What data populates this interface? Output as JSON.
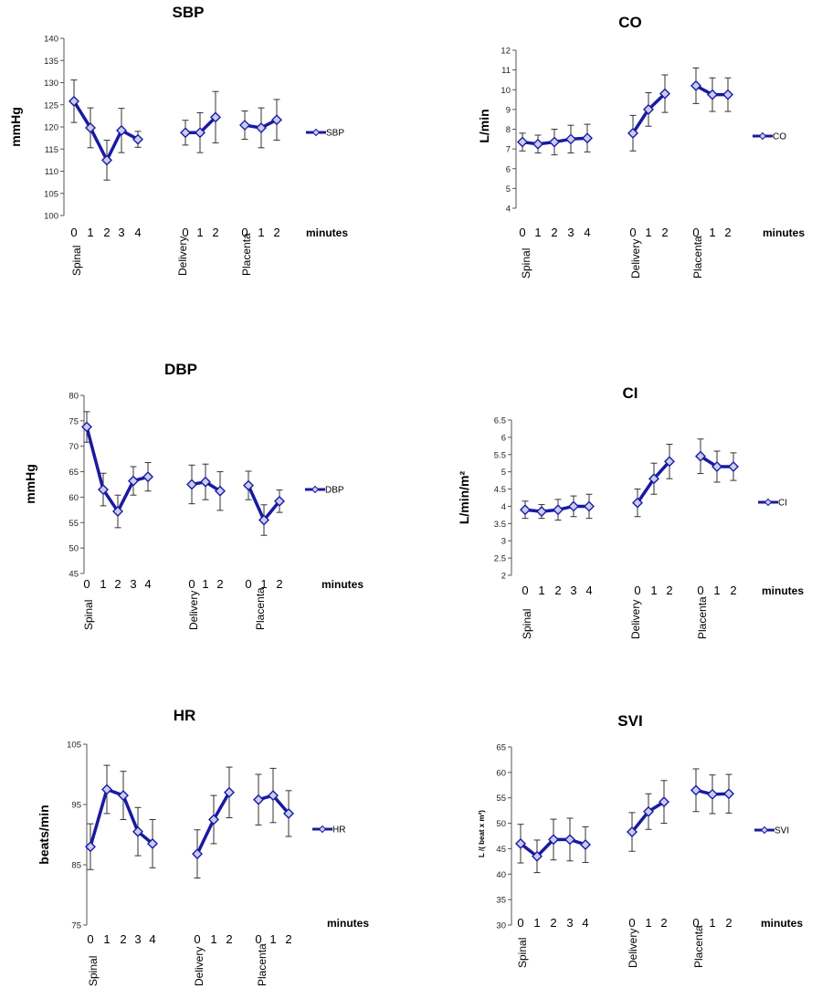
{
  "chart_data": [
    {
      "type": "line",
      "title": "SBP",
      "ylabel": "mmHg",
      "xlabel": "minutes",
      "ylim": [
        100,
        140
      ],
      "yticks": [
        100,
        105,
        110,
        115,
        120,
        125,
        130,
        135,
        140
      ],
      "groups": [
        {
          "label": "Spinal",
          "minutes": [
            "0",
            "1",
            "2",
            "3",
            "4"
          ],
          "values": [
            125.8,
            119.8,
            112.5,
            119.2,
            117.2
          ],
          "err": [
            4.8,
            4.5,
            4.5,
            5.0,
            1.8
          ]
        },
        {
          "label": "Delivery",
          "minutes": [
            "0",
            "1",
            "2"
          ],
          "values": [
            118.7,
            118.7,
            122.2
          ],
          "err": [
            2.8,
            4.5,
            5.8
          ]
        },
        {
          "label": "Placenta",
          "minutes": [
            "0",
            "1",
            "2"
          ],
          "values": [
            120.4,
            119.8,
            121.6
          ],
          "err": [
            3.2,
            4.5,
            4.6
          ]
        }
      ],
      "series": [
        {
          "name": "SBP"
        }
      ],
      "color": "#1a1aa0"
    },
    {
      "type": "line",
      "title": "CO",
      "ylabel": "L/min",
      "xlabel": "minutes",
      "ylim": [
        4,
        12
      ],
      "yticks": [
        4,
        5,
        6,
        7,
        8,
        9,
        10,
        11,
        12
      ],
      "groups": [
        {
          "label": "Spinal",
          "minutes": [
            "0",
            "1",
            "2",
            "3",
            "4"
          ],
          "values": [
            7.35,
            7.25,
            7.35,
            7.5,
            7.55
          ],
          "err": [
            0.45,
            0.45,
            0.65,
            0.7,
            0.7
          ]
        },
        {
          "label": "Delivery",
          "minutes": [
            "0",
            "1",
            "2"
          ],
          "values": [
            7.8,
            9.0,
            9.8
          ],
          "err": [
            0.9,
            0.85,
            0.95
          ]
        },
        {
          "label": "Placenta",
          "minutes": [
            "0",
            "1",
            "2"
          ],
          "values": [
            10.2,
            9.75,
            9.75
          ],
          "err": [
            0.9,
            0.85,
            0.85
          ]
        }
      ],
      "series": [
        {
          "name": "CO"
        }
      ],
      "color": "#1a1aa0"
    },
    {
      "type": "line",
      "title": "DBP",
      "ylabel": "mmHg",
      "xlabel": "minutes",
      "ylim": [
        45,
        80
      ],
      "yticks": [
        45,
        50,
        55,
        60,
        65,
        70,
        75,
        80
      ],
      "groups": [
        {
          "label": "Spinal",
          "minutes": [
            "0",
            "1",
            "2",
            "3",
            "4"
          ],
          "values": [
            73.8,
            61.5,
            57.2,
            63.2,
            64.0
          ],
          "err": [
            3.0,
            3.2,
            3.2,
            2.8,
            2.8
          ]
        },
        {
          "label": "Delivery",
          "minutes": [
            "0",
            "1",
            "2"
          ],
          "values": [
            62.5,
            63.0,
            61.2
          ],
          "err": [
            3.8,
            3.5,
            3.8
          ]
        },
        {
          "label": "Placenta",
          "minutes": [
            "0",
            "1",
            "2"
          ],
          "values": [
            62.3,
            55.5,
            59.2
          ],
          "err": [
            2.8,
            3.0,
            2.2
          ]
        }
      ],
      "series": [
        {
          "name": "DBP"
        }
      ],
      "color": "#1a1aa0"
    },
    {
      "type": "line",
      "title": "CI",
      "ylabel": "L/min/m²",
      "xlabel": "minutes",
      "ylim": [
        2,
        6.5
      ],
      "yticks": [
        "2",
        "2.5",
        "3",
        "3.5",
        "4",
        "4.5",
        "5",
        "5.5",
        "6",
        "6.5"
      ],
      "groups": [
        {
          "label": "Spinal",
          "minutes": [
            "0",
            "1",
            "2",
            "3",
            "4"
          ],
          "values": [
            3.9,
            3.85,
            3.9,
            4.0,
            4.0
          ],
          "err": [
            0.25,
            0.2,
            0.3,
            0.3,
            0.35
          ]
        },
        {
          "label": "Delivery",
          "minutes": [
            "0",
            "1",
            "2"
          ],
          "values": [
            4.1,
            4.8,
            5.3
          ],
          "err": [
            0.4,
            0.45,
            0.5
          ]
        },
        {
          "label": "Placenta",
          "minutes": [
            "0",
            "1",
            "2"
          ],
          "values": [
            5.45,
            5.15,
            5.15
          ],
          "err": [
            0.5,
            0.45,
            0.4
          ]
        }
      ],
      "series": [
        {
          "name": "CI"
        }
      ],
      "color": "#1a1aa0"
    },
    {
      "type": "line",
      "title": "HR",
      "ylabel": "beats/min",
      "xlabel": "minutes",
      "ylim": [
        75,
        105
      ],
      "yticks": [
        75,
        85,
        95,
        105
      ],
      "groups": [
        {
          "label": "Spinal",
          "minutes": [
            "0",
            "1",
            "2",
            "3",
            "4"
          ],
          "values": [
            88.0,
            97.5,
            96.5,
            90.5,
            88.5
          ],
          "err": [
            3.8,
            4.0,
            4.0,
            4.0,
            4.0
          ]
        },
        {
          "label": "Delivery",
          "minutes": [
            "0",
            "1",
            "2"
          ],
          "values": [
            86.8,
            92.5,
            97.0
          ],
          "err": [
            4.0,
            4.0,
            4.2
          ]
        },
        {
          "label": "Placenta",
          "minutes": [
            "0",
            "1",
            "2"
          ],
          "values": [
            95.8,
            96.5,
            93.5
          ],
          "err": [
            4.2,
            4.5,
            3.8
          ]
        }
      ],
      "series": [
        {
          "name": "HR"
        }
      ],
      "color": "#1a1aa0"
    },
    {
      "type": "line",
      "title": "SVI",
      "ylabel": "L /( beat x m²)",
      "xlabel": "minutes",
      "ylim": [
        30,
        65
      ],
      "yticks": [
        30,
        35,
        40,
        45,
        50,
        55,
        60,
        65
      ],
      "groups": [
        {
          "label": "Spinal",
          "minutes": [
            "0",
            "1",
            "2",
            "3",
            "4"
          ],
          "values": [
            46.0,
            43.5,
            46.8,
            46.8,
            45.8
          ],
          "err": [
            3.8,
            3.2,
            4.0,
            4.2,
            3.5
          ]
        },
        {
          "label": "Delivery",
          "minutes": [
            "0",
            "1",
            "2"
          ],
          "values": [
            48.3,
            52.3,
            54.2
          ],
          "err": [
            3.8,
            3.5,
            4.2
          ]
        },
        {
          "label": "Placenta",
          "minutes": [
            "0",
            "1",
            "2"
          ],
          "values": [
            56.5,
            55.7,
            55.8
          ],
          "err": [
            4.2,
            3.8,
            3.8
          ]
        }
      ],
      "series": [
        {
          "name": "SVI"
        }
      ],
      "color": "#1a1aa0"
    }
  ]
}
